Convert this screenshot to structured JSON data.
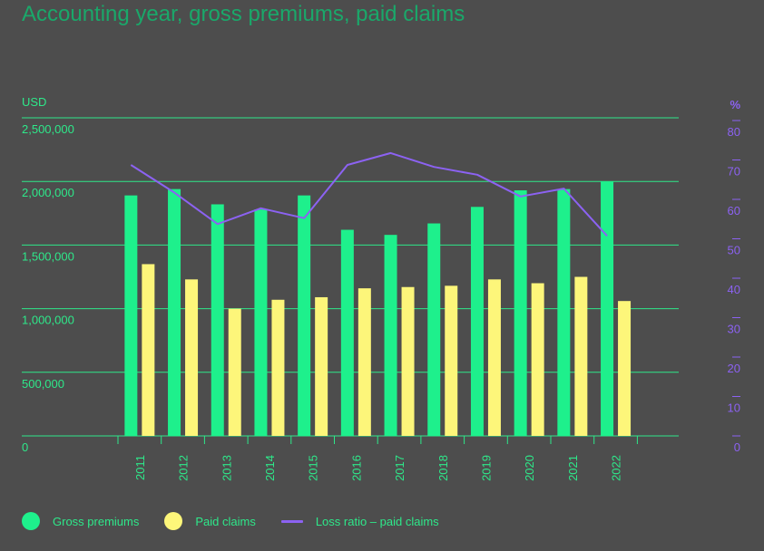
{
  "chart_data": {
    "type": "bar",
    "title": "Accounting year, gross premiums, paid claims",
    "ylabel_left": "USD",
    "ylabel_right": "%",
    "categories": [
      "2011",
      "2012",
      "2013",
      "2014",
      "2015",
      "2016",
      "2017",
      "2018",
      "2019",
      "2020",
      "2021",
      "2022"
    ],
    "series": [
      {
        "name": "Gross premiums",
        "kind": "bar",
        "axis": "left",
        "color": "#1ef08c",
        "values": [
          1890000,
          1940000,
          1820000,
          1780000,
          1890000,
          1620000,
          1580000,
          1670000,
          1800000,
          1930000,
          1940000,
          2000000
        ]
      },
      {
        "name": "Paid claims",
        "kind": "bar",
        "axis": "left",
        "color": "#fdf67a",
        "values": [
          1350000,
          1230000,
          1000000,
          1070000,
          1090000,
          1160000,
          1170000,
          1180000,
          1230000,
          1200000,
          1250000,
          1060000
        ]
      },
      {
        "name": "Loss ratio – paid claims",
        "kind": "line",
        "axis": "right",
        "color": "#8c62f2",
        "values": [
          71.5,
          64.5,
          56.5,
          60.5,
          58,
          71.5,
          74.5,
          71,
          69,
          63.5,
          65.5,
          53.5
        ]
      }
    ],
    "ylim_left": [
      0,
      2500000
    ],
    "ylim_right": [
      0,
      80
    ],
    "yticks_left": [
      "0",
      "500,000",
      "1,000,000",
      "1,500,000",
      "2,000,000",
      "2,500,000"
    ],
    "yticks_right": [
      "0",
      "10",
      "20",
      "30",
      "40",
      "50",
      "60",
      "70",
      "80"
    ],
    "grid": true,
    "legend_position": "bottom-left"
  },
  "colors": {
    "background": "#4d4d4d",
    "title": "#1aa86a",
    "axis_text_left": "#2ee88a",
    "axis_text_right": "#8c62f2",
    "gridline": "#2ee88a"
  }
}
